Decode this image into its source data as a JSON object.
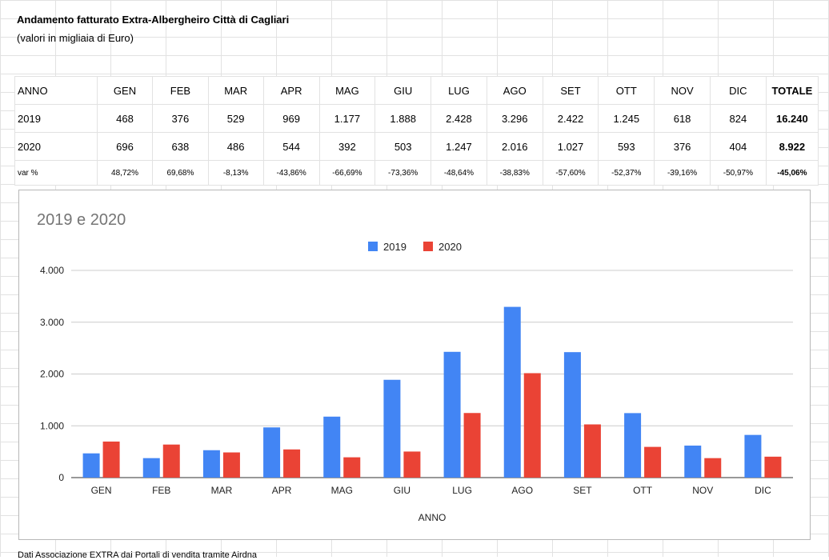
{
  "sheet": {
    "title": "Andamento fatturato Extra-Albergheiro Città di Cagliari",
    "subtitle": "(valori in migliaia di Euro)",
    "header": [
      "ANNO",
      "GEN",
      "FEB",
      "MAR",
      "APR",
      "MAG",
      "GIU",
      "LUG",
      "AGO",
      "SET",
      "OTT",
      "NOV",
      "DIC",
      "TOTALE"
    ],
    "rows": [
      [
        "2019",
        "468",
        "376",
        "529",
        "969",
        "1.177",
        "1.888",
        "2.428",
        "3.296",
        "2.422",
        "1.245",
        "618",
        "824",
        "16.240"
      ],
      [
        "2020",
        "696",
        "638",
        "486",
        "544",
        "392",
        "503",
        "1.247",
        "2.016",
        "1.027",
        "593",
        "376",
        "404",
        "8.922"
      ],
      [
        "var %",
        "48,72%",
        "69,68%",
        "-8,13%",
        "-43,86%",
        "-66,69%",
        "-73,36%",
        "-48,64%",
        "-38,83%",
        "-57,60%",
        "-52,37%",
        "-39,16%",
        "-50,97%",
        "-45,06%"
      ]
    ],
    "footnote": "Dati Associazione EXTRA dai Portali di vendita tramite Airdna"
  },
  "chart_data": {
    "type": "bar",
    "title": "2019 e 2020",
    "xlabel": "ANNO",
    "ylabel": "",
    "categories": [
      "GEN",
      "FEB",
      "MAR",
      "APR",
      "MAG",
      "GIU",
      "LUG",
      "AGO",
      "SET",
      "OTT",
      "NOV",
      "DIC"
    ],
    "series": [
      {
        "name": "2019",
        "color": "#4285f4",
        "values": [
          468,
          376,
          529,
          969,
          1177,
          1888,
          2428,
          3296,
          2422,
          1245,
          618,
          824
        ]
      },
      {
        "name": "2020",
        "color": "#ea4335",
        "values": [
          696,
          638,
          486,
          544,
          392,
          503,
          1247,
          2016,
          1027,
          593,
          376,
          404
        ]
      }
    ],
    "ylim": [
      0,
      4000
    ],
    "yticks": [
      0,
      1000,
      2000,
      3000,
      4000
    ],
    "ytick_labels": [
      "0",
      "1.000",
      "2.000",
      "3.000",
      "4.000"
    ],
    "grid": true,
    "legend": "top-center"
  }
}
